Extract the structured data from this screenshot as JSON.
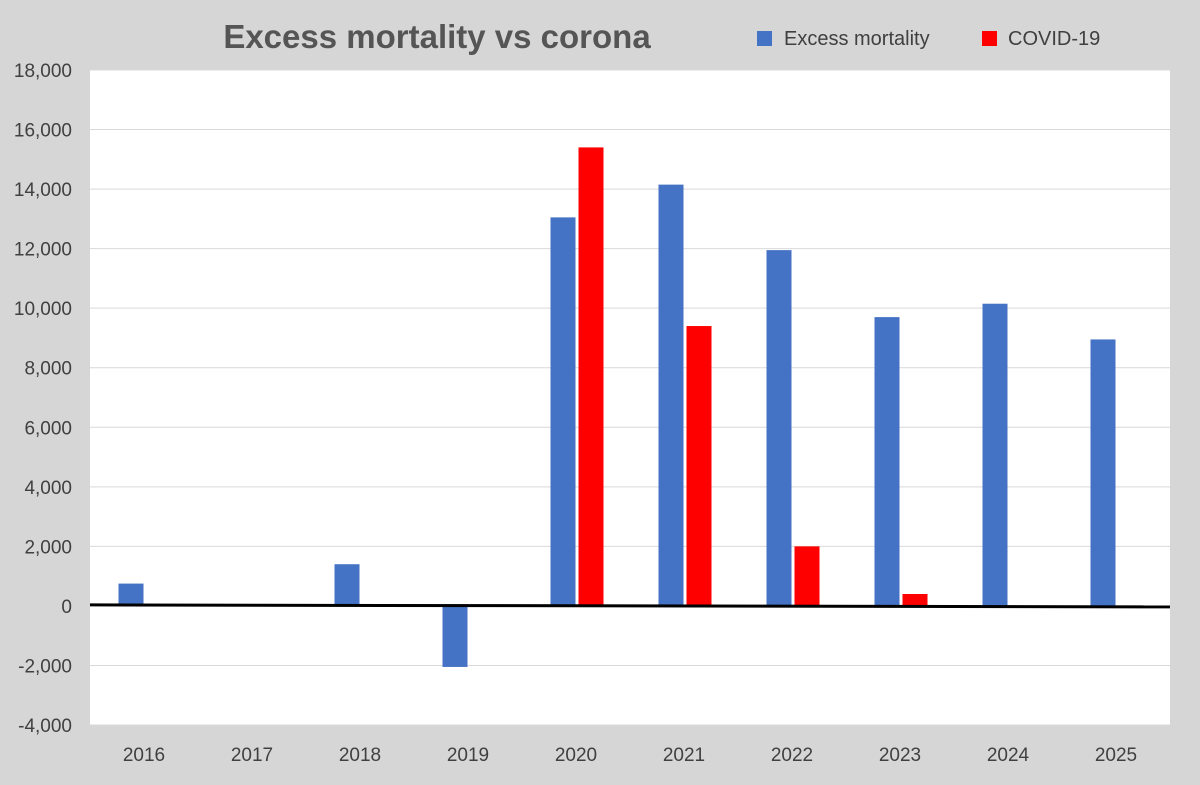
{
  "chart_data": {
    "type": "bar",
    "title": "Excess mortality vs corona",
    "categories": [
      "2016",
      "2017",
      "2018",
      "2019",
      "2020",
      "2021",
      "2022",
      "2023",
      "2024",
      "2025"
    ],
    "series": [
      {
        "name": "Excess mortality",
        "color": "#4472c4",
        "values": [
          750,
          0,
          1400,
          -2050,
          13050,
          14150,
          11950,
          9700,
          10150,
          8950
        ]
      },
      {
        "name": "COVID-19",
        "color": "#ff0000",
        "values": [
          0,
          0,
          0,
          0,
          15400,
          9400,
          2000,
          400,
          0,
          0
        ]
      }
    ],
    "ylim": [
      -4000,
      18000
    ],
    "yticks": [
      18000,
      16000,
      14000,
      12000,
      10000,
      8000,
      6000,
      4000,
      2000,
      0,
      -2000,
      -4000
    ],
    "ytick_labels": [
      "18,000",
      "16,000",
      "14,000",
      "12,000",
      "10,000",
      "8,000",
      "6,000",
      "4,000",
      "2,000",
      "0",
      "-2,000",
      "-4,000"
    ],
    "grid": true,
    "legend_position": "top-right"
  }
}
